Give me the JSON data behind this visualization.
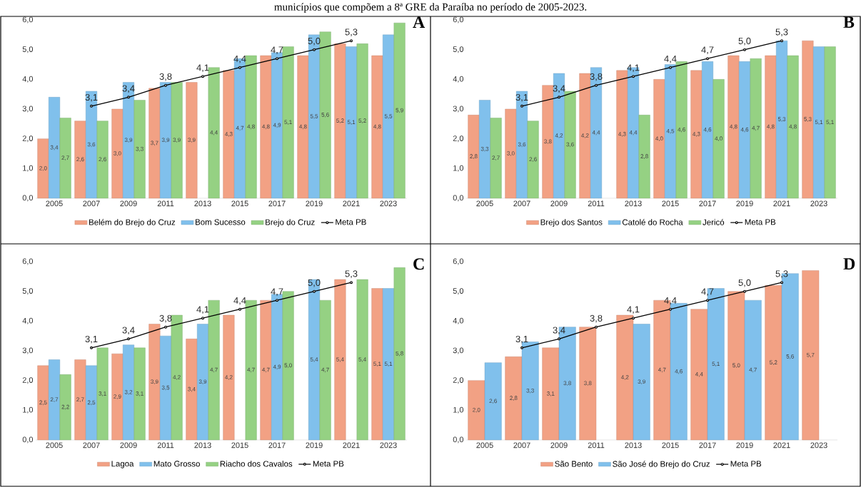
{
  "chart_data": [
    {
      "type": "bar",
      "title": "municípios que compõem a 8ª GRE da Paraíba no período de 2005-2023.",
      "annotations": [
        "A"
      ],
      "legend": "bottom",
      "categories": [
        "2005",
        "2007",
        "2009",
        "2011",
        "2013",
        "2015",
        "2017",
        "2019",
        "2021",
        "2023"
      ],
      "ylim": [
        0,
        6
      ],
      "yticks": [
        {
          "value": 0,
          "label": "0,0"
        },
        {
          "value": 1,
          "label": "1,0"
        },
        {
          "value": 2,
          "label": "2,0"
        },
        {
          "value": 3,
          "label": "3,0"
        },
        {
          "value": 4,
          "label": "4,0"
        },
        {
          "value": 5,
          "label": "5,0"
        },
        {
          "value": 6,
          "label": "6,0"
        }
      ],
      "series": [
        {
          "name": "Belém do Brejo do Cruz",
          "color": "#f2a184",
          "values": [
            2.0,
            2.6,
            3.0,
            3.7,
            3.9,
            4.3,
            4.8,
            4.8,
            5.2,
            4.8
          ],
          "value_labels": [
            "2,0",
            "2,6",
            "3,0",
            "3,7",
            "3,9",
            "4,3",
            "4,8",
            "4,8",
            "5,2",
            "4,8"
          ]
        },
        {
          "name": "Bom Sucesso",
          "color": "#80c0ec",
          "values": [
            3.4,
            3.6,
            3.9,
            3.9,
            null,
            4.7,
            4.9,
            5.5,
            5.1,
            5.5
          ],
          "value_labels": [
            "3,4",
            "3,6",
            "3,9",
            "3,9",
            null,
            "4,7",
            "4,9",
            "5,5",
            "5,1",
            "5,5"
          ]
        },
        {
          "name": "Brejo do Cruz",
          "color": "#95d183",
          "values": [
            2.7,
            2.6,
            3.3,
            3.9,
            4.4,
            4.8,
            5.1,
            5.6,
            5.2,
            5.9
          ],
          "value_labels": [
            "2,7",
            "2,6",
            "3,3",
            "3,9",
            "4,4",
            "4,8",
            "5,1",
            "5,6",
            "5,2",
            "5,9"
          ]
        },
        {
          "name": "Meta PB",
          "type": "line",
          "marker": "circle",
          "color": "#000000",
          "values": [
            null,
            3.1,
            3.4,
            3.8,
            4.1,
            4.4,
            4.7,
            5.0,
            5.3,
            null
          ],
          "value_labels": [
            null,
            "3,1",
            "3,4",
            "3,8",
            "4,1",
            "4,4",
            "4,7",
            "5,0",
            "5,3",
            null
          ]
        }
      ]
    },
    {
      "type": "bar",
      "annotations": [
        "B"
      ],
      "legend": "bottom",
      "categories": [
        "2005",
        "2007",
        "2009",
        "2011",
        "2013",
        "2015",
        "2017",
        "2019",
        "2021",
        "2023"
      ],
      "ylim": [
        0,
        6
      ],
      "yticks": [
        {
          "value": 0,
          "label": "0,0"
        },
        {
          "value": 1,
          "label": "1,0"
        },
        {
          "value": 2,
          "label": "2,0"
        },
        {
          "value": 3,
          "label": "3,0"
        },
        {
          "value": 4,
          "label": "4,0"
        },
        {
          "value": 5,
          "label": "5,0"
        },
        {
          "value": 6,
          "label": "6,0"
        }
      ],
      "series": [
        {
          "name": "Brejo dos Santos",
          "color": "#f2a184",
          "values": [
            2.8,
            3.0,
            3.8,
            4.2,
            4.3,
            4.0,
            4.3,
            4.8,
            4.8,
            5.3
          ],
          "value_labels": [
            "2,8",
            "3,0",
            "3,8",
            "4,2",
            "4,3",
            "4,0",
            "4,3",
            "4,8",
            "4,8",
            "5,3"
          ]
        },
        {
          "name": "Catolé do Rocha",
          "color": "#80c0ec",
          "values": [
            3.3,
            3.6,
            4.2,
            4.4,
            4.4,
            4.5,
            4.6,
            4.6,
            5.3,
            5.1
          ],
          "value_labels": [
            "3,3",
            "3,6",
            "4,2",
            "4,4",
            "4,4",
            "4,5",
            "4,6",
            "4,6",
            "5,3",
            "5,1"
          ]
        },
        {
          "name": "Jericó",
          "color": "#95d183",
          "values": [
            2.7,
            2.6,
            3.6,
            null,
            2.8,
            4.6,
            4.0,
            4.7,
            4.8,
            5.1
          ],
          "value_labels": [
            "2,7",
            "2,6",
            "3,6",
            null,
            "2,8",
            "4,6",
            "4,0",
            "4,7",
            "4,8",
            "5,1"
          ]
        },
        {
          "name": "Meta PB",
          "type": "line",
          "marker": "circle",
          "color": "#000000",
          "values": [
            null,
            3.1,
            3.4,
            3.8,
            4.1,
            4.4,
            4.7,
            5.0,
            5.3,
            null
          ],
          "value_labels": [
            null,
            "3,1",
            "3,4",
            "3,8",
            "4,1",
            "4,4",
            "4,7",
            "5,0",
            "5,3",
            null
          ]
        }
      ]
    },
    {
      "type": "bar",
      "annotations": [
        "C"
      ],
      "legend": "bottom",
      "categories": [
        "2005",
        "2007",
        "2009",
        "2011",
        "2013",
        "2015",
        "2017",
        "2019",
        "2021",
        "2023"
      ],
      "ylim": [
        0,
        6
      ],
      "yticks": [
        {
          "value": 0,
          "label": "0,0"
        },
        {
          "value": 1,
          "label": "1,0"
        },
        {
          "value": 2,
          "label": "2,0"
        },
        {
          "value": 3,
          "label": "3,0"
        },
        {
          "value": 4,
          "label": "4,0"
        },
        {
          "value": 5,
          "label": "5,0"
        },
        {
          "value": 6,
          "label": "6,0"
        }
      ],
      "series": [
        {
          "name": "Lagoa",
          "color": "#f2a184",
          "values": [
            2.5,
            2.7,
            2.9,
            3.9,
            3.4,
            4.2,
            4.7,
            null,
            5.4,
            5.1
          ],
          "value_labels": [
            "2,5",
            "2,7",
            "2,9",
            "3,9",
            "3,4",
            "4,2",
            "4,7",
            null,
            "5,4",
            "5,1"
          ]
        },
        {
          "name": "Mato Grosso",
          "color": "#80c0ec",
          "values": [
            2.7,
            2.5,
            3.2,
            3.5,
            3.9,
            null,
            4.9,
            5.4,
            null,
            5.1
          ],
          "value_labels": [
            "2,7",
            "2,5",
            "3,2",
            "3,5",
            "3,9",
            null,
            "4,9",
            "5,4",
            null,
            "5,1"
          ]
        },
        {
          "name": "Riacho dos Cavalos",
          "color": "#95d183",
          "values": [
            2.2,
            3.1,
            3.1,
            4.2,
            4.7,
            4.7,
            5.0,
            4.7,
            5.4,
            5.8
          ],
          "value_labels": [
            "2,2",
            "3,1",
            "3,1",
            "4,2",
            "4,7",
            "4,7",
            "5,0",
            "4,7",
            "5,4",
            "5,8"
          ]
        },
        {
          "name": "Meta PB",
          "type": "line",
          "marker": "circle",
          "color": "#000000",
          "values": [
            null,
            3.1,
            3.4,
            3.8,
            4.1,
            4.4,
            4.7,
            5.0,
            5.3,
            null
          ],
          "value_labels": [
            null,
            "3,1",
            "3,4",
            "3,8",
            "4,1",
            "4,4",
            "4,7",
            "5,0",
            "5,3",
            null
          ]
        }
      ]
    },
    {
      "type": "bar",
      "annotations": [
        "D"
      ],
      "legend": "bottom",
      "categories": [
        "2005",
        "2007",
        "2009",
        "2011",
        "2013",
        "2015",
        "2017",
        "2019",
        "2021",
        "2023"
      ],
      "ylim": [
        0,
        6
      ],
      "yticks": [
        {
          "value": 0,
          "label": "0,0"
        },
        {
          "value": 1,
          "label": "1,0"
        },
        {
          "value": 2,
          "label": "2,0"
        },
        {
          "value": 3,
          "label": "3,0"
        },
        {
          "value": 4,
          "label": "4,0"
        },
        {
          "value": 5,
          "label": "5,0"
        },
        {
          "value": 6,
          "label": "6,0"
        }
      ],
      "series": [
        {
          "name": "São Bento",
          "color": "#f2a184",
          "values": [
            2.0,
            2.8,
            3.1,
            3.8,
            4.2,
            4.7,
            4.4,
            5.0,
            5.2,
            5.7
          ],
          "value_labels": [
            "2,0",
            "2,8",
            "3,1",
            "3,8",
            "4,2",
            "4,7",
            "4,4",
            "5,0",
            "5,2",
            "5,7"
          ]
        },
        {
          "name": "São José do Brejo do Cruz",
          "color": "#80c0ec",
          "values": [
            2.6,
            3.3,
            3.8,
            null,
            3.9,
            4.6,
            5.1,
            4.7,
            5.6,
            null
          ],
          "value_labels": [
            "2,6",
            "3,3",
            "3,8",
            null,
            "3,9",
            "4,6",
            "5,1",
            "4,7",
            "5,6",
            null
          ]
        },
        {
          "name": "Meta PB",
          "type": "line",
          "marker": "circle",
          "color": "#000000",
          "values": [
            null,
            3.1,
            3.4,
            3.8,
            4.1,
            4.4,
            4.7,
            5.0,
            5.3,
            null
          ],
          "value_labels": [
            null,
            "3,1",
            "3,4",
            "3,8",
            "4,1",
            "4,4",
            "4,7",
            "5,0",
            "5,3",
            null
          ]
        }
      ]
    }
  ]
}
